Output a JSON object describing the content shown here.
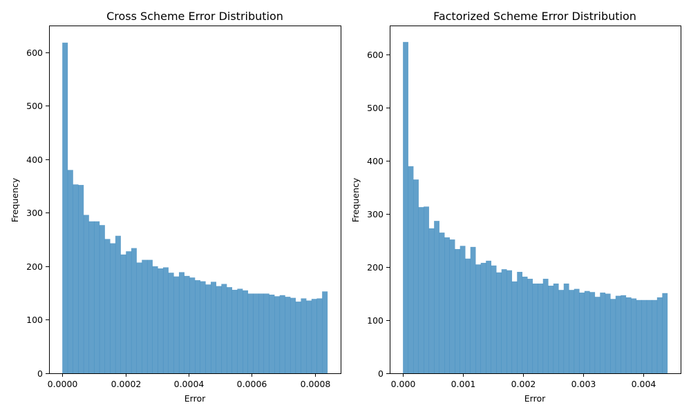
{
  "chart_data": [
    {
      "type": "bar",
      "title": "Cross Scheme Error Distribution",
      "xlabel": "Error",
      "ylabel": "Frequency",
      "xlim": [
        -4.2e-05,
        0.000882
      ],
      "ylim": [
        0,
        650
      ],
      "xticks": [
        0.0,
        0.0002,
        0.0004,
        0.0006,
        0.0008
      ],
      "xtick_labels": [
        "0.0000",
        "0.0002",
        "0.0004",
        "0.0006",
        "0.0008"
      ],
      "yticks": [
        0,
        100,
        200,
        300,
        400,
        500,
        600
      ],
      "ytick_labels": [
        "0",
        "100",
        "200",
        "300",
        "400",
        "500",
        "600"
      ],
      "bin_start": 0.0,
      "bin_end": 0.00084,
      "values": [
        618,
        380,
        353,
        352,
        296,
        284,
        284,
        277,
        251,
        243,
        257,
        222,
        228,
        234,
        207,
        212,
        212,
        200,
        196,
        198,
        188,
        181,
        189,
        182,
        179,
        174,
        172,
        166,
        171,
        163,
        167,
        161,
        156,
        158,
        155,
        149,
        149,
        149,
        149,
        147,
        144,
        146,
        143,
        141,
        134,
        140,
        136,
        139,
        140,
        153
      ]
    },
    {
      "type": "bar",
      "title": "Factorized Scheme Error Distribution",
      "xlabel": "Error",
      "ylabel": "Frequency",
      "xlim": [
        -0.00022,
        0.00462
      ],
      "ylim": [
        0,
        655
      ],
      "xticks": [
        0.0,
        0.001,
        0.002,
        0.003,
        0.004
      ],
      "xtick_labels": [
        "0.000",
        "0.001",
        "0.002",
        "0.003",
        "0.004"
      ],
      "yticks": [
        0,
        100,
        200,
        300,
        400,
        500,
        600
      ],
      "ytick_labels": [
        "0",
        "100",
        "200",
        "300",
        "400",
        "500",
        "600"
      ],
      "bin_start": 0.0,
      "bin_end": 0.0044,
      "values": [
        624,
        390,
        365,
        313,
        314,
        273,
        287,
        265,
        256,
        252,
        234,
        240,
        216,
        238,
        205,
        208,
        212,
        203,
        190,
        196,
        194,
        173,
        191,
        182,
        178,
        169,
        169,
        178,
        165,
        169,
        157,
        169,
        157,
        159,
        152,
        155,
        153,
        144,
        152,
        150,
        140,
        146,
        147,
        143,
        141,
        138,
        138,
        138,
        138,
        143,
        151
      ]
    }
  ]
}
